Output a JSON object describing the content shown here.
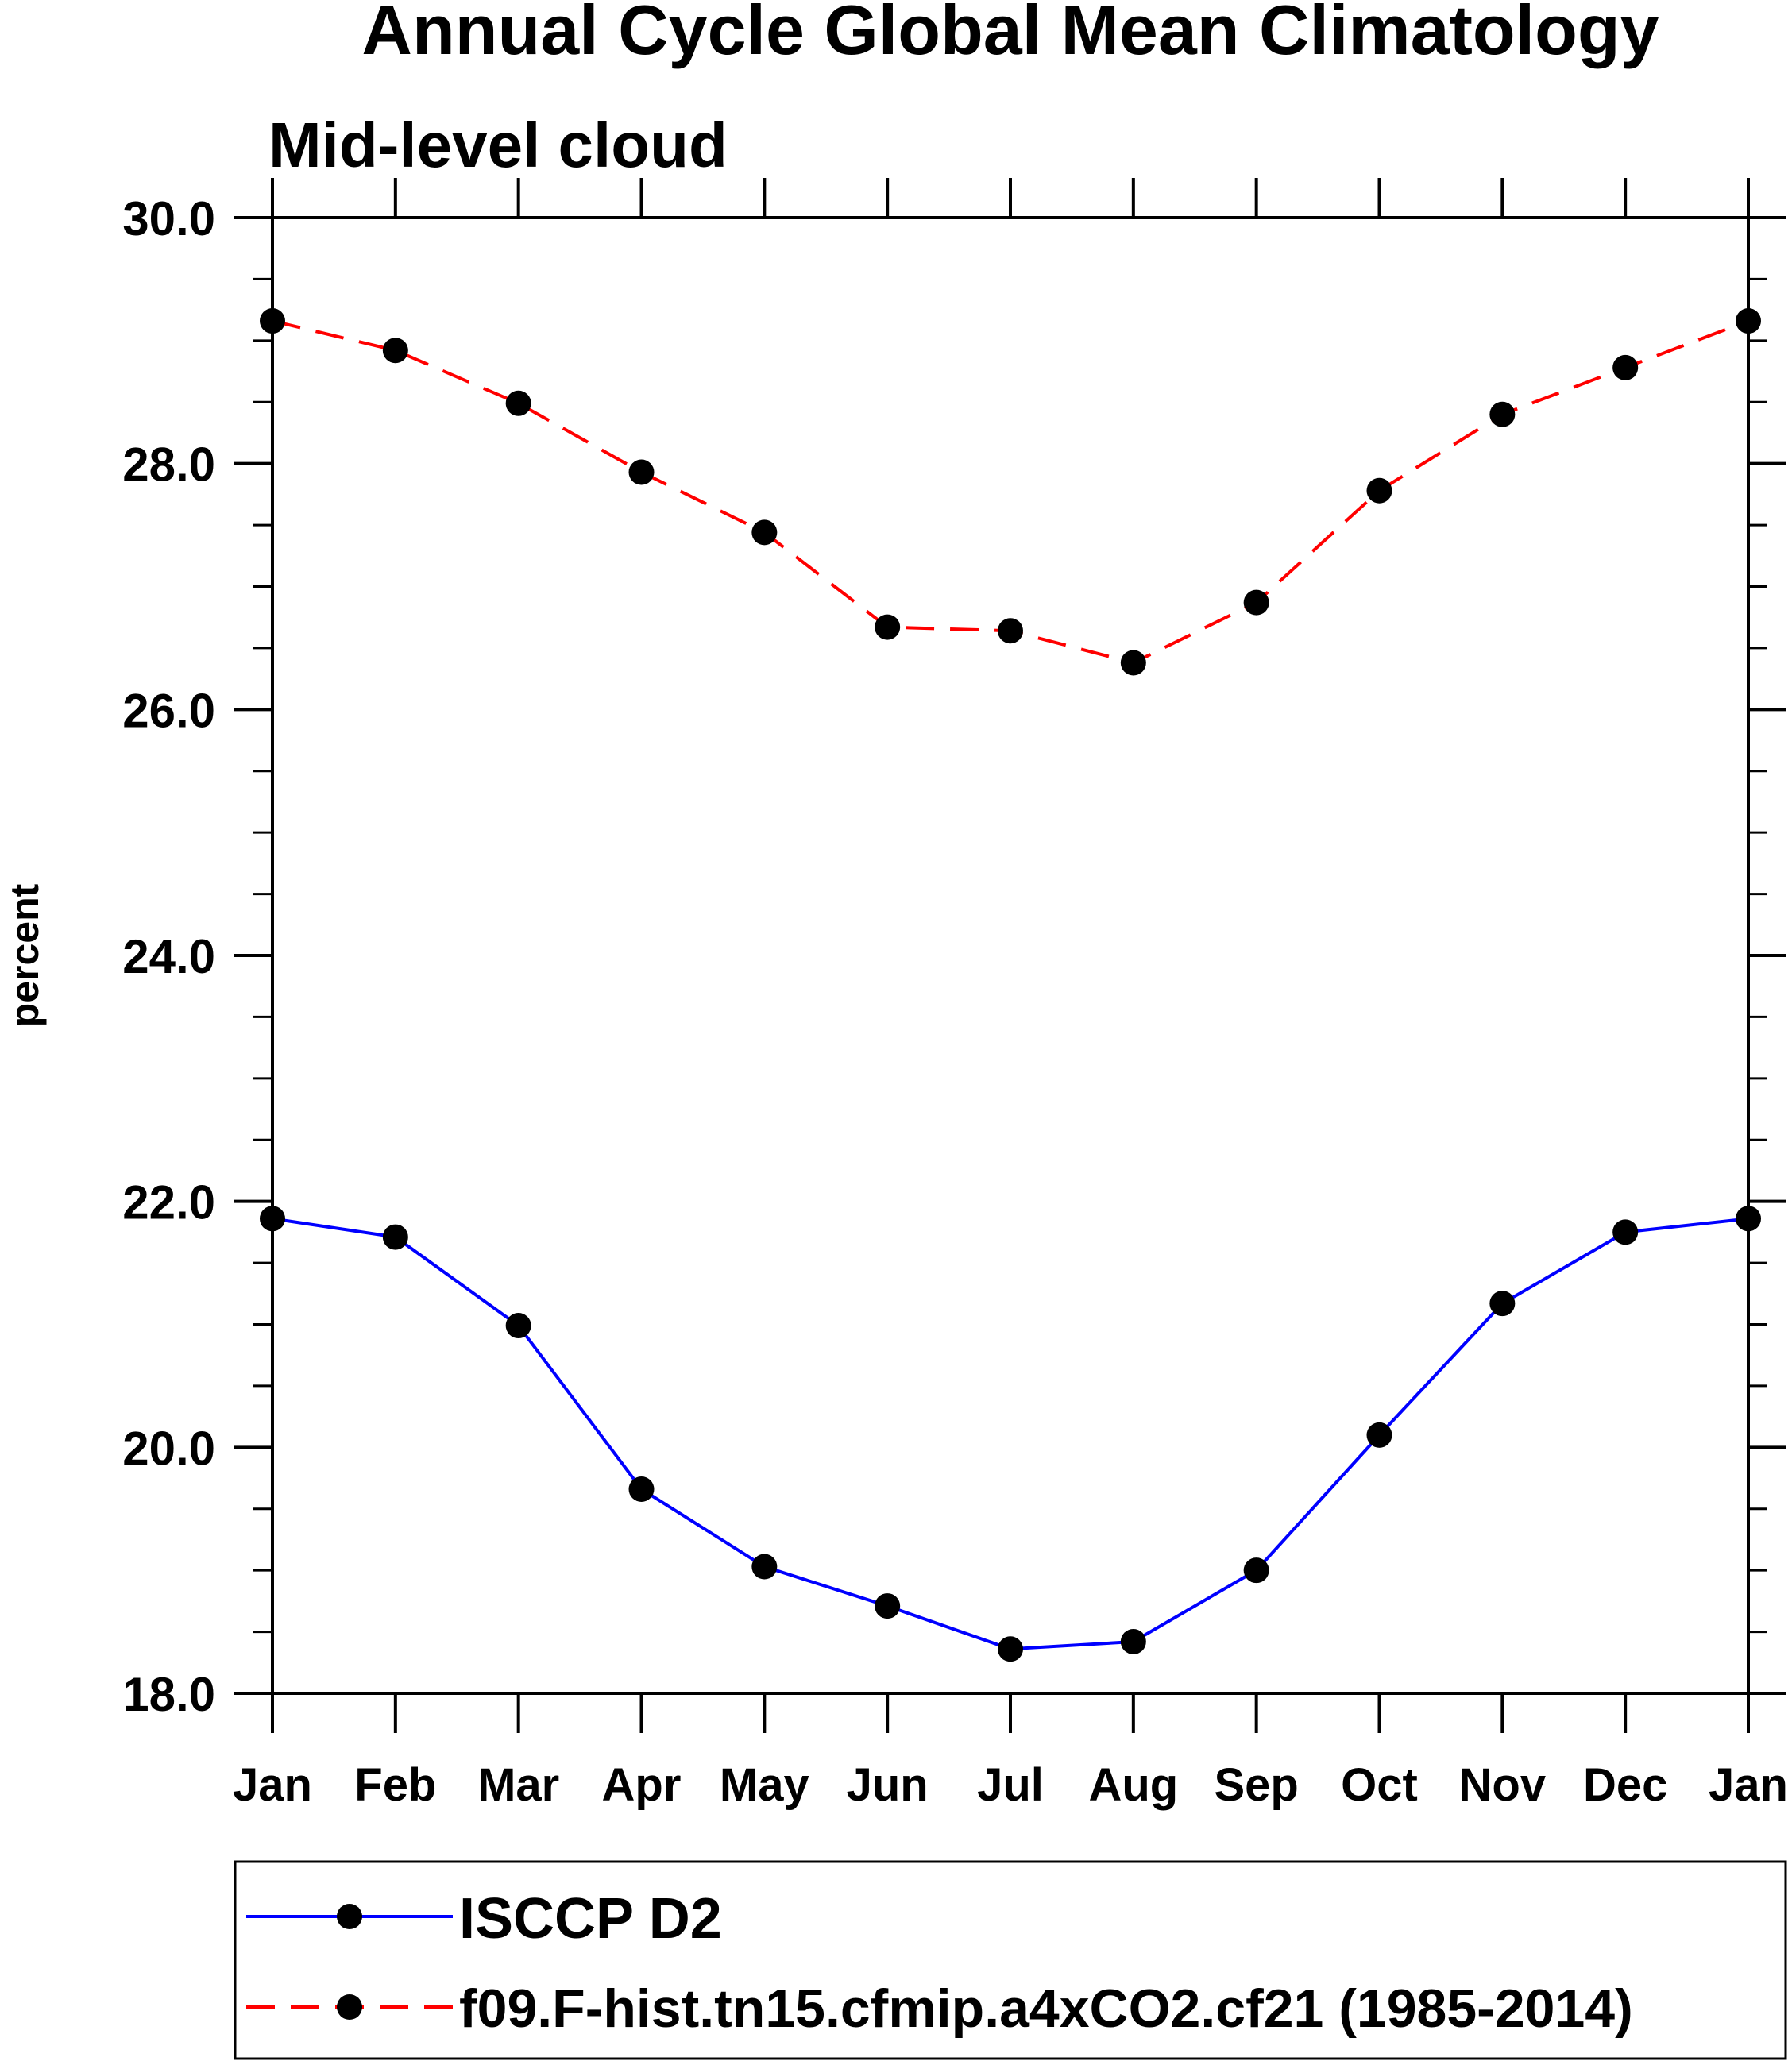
{
  "chart_data": {
    "type": "line",
    "title": "Annual Cycle Global Mean Climatology",
    "subtitle": "Mid-level cloud",
    "xlabel": "",
    "ylabel": "percent",
    "categories": [
      "Jan",
      "Feb",
      "Mar",
      "Apr",
      "May",
      "Jun",
      "Jul",
      "Aug",
      "Sep",
      "Oct",
      "Nov",
      "Dec",
      "Jan"
    ],
    "ylim": [
      18.0,
      30.0
    ],
    "yticks": [
      "18.0",
      "20.0",
      "22.0",
      "24.0",
      "26.0",
      "28.0",
      "30.0"
    ],
    "ytick_values": [
      18,
      20,
      22,
      24,
      26,
      28,
      30
    ],
    "yminor_step": 0.5,
    "grid": false,
    "legend_position": "bottom",
    "series": [
      {
        "name": "ISCCP D2",
        "color": "#0000ff",
        "dash": "solid",
        "values": [
          21.86,
          21.71,
          20.99,
          19.66,
          19.03,
          18.71,
          18.36,
          18.42,
          19.0,
          20.1,
          21.17,
          21.75,
          21.86
        ]
      },
      {
        "name": "f09.F-hist.tn15.cfmip.a4xCO2.cf21 (1985-2014)",
        "color": "#ff0000",
        "dash": "dashed",
        "values": [
          29.16,
          28.92,
          28.49,
          27.93,
          27.44,
          26.67,
          26.64,
          26.38,
          26.87,
          27.78,
          28.4,
          28.78,
          29.16
        ]
      }
    ]
  }
}
